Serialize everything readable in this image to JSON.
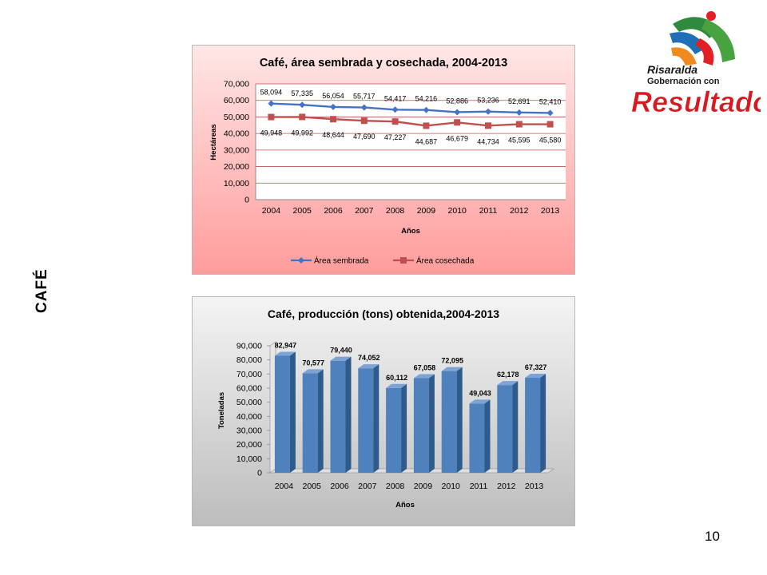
{
  "slide": {
    "side_label": "CAFÉ",
    "page_number": "10"
  },
  "logo": {
    "line1": "Risaralda",
    "line2": "Gobernación con",
    "line3": "Resultados"
  },
  "colors": {
    "sembrada": "#4472C4",
    "cosechada": "#C0504D",
    "bar": "#4F81BD"
  },
  "chart_data": [
    {
      "type": "line",
      "title": "Café, área sembrada y cosechada, 2004-2013",
      "xlabel": "Años",
      "ylabel": "Hectáreas",
      "categories": [
        "2004",
        "2005",
        "2006",
        "2007",
        "2008",
        "2009",
        "2010",
        "2011",
        "2012",
        "2013"
      ],
      "ylim": [
        0,
        70000
      ],
      "yticks": [
        "0",
        "10,000",
        "20,000",
        "30,000",
        "40,000",
        "50,000",
        "60,000",
        "70,000"
      ],
      "series": [
        {
          "name": "Área sembrada",
          "values": [
            58094,
            57335,
            56054,
            55717,
            54417,
            54216,
            52886,
            53236,
            52691,
            52410
          ],
          "labels": [
            "58,094",
            "57,335",
            "56,054",
            "55,717",
            "54,417",
            "54,216",
            "52,886",
            "53,236",
            "52,691",
            "52,410"
          ]
        },
        {
          "name": "Área cosechada",
          "values": [
            49948,
            49992,
            48644,
            47690,
            47227,
            44687,
            46679,
            44734,
            45595,
            45580
          ],
          "labels": [
            "49,948",
            "49,992",
            "48,644",
            "47,690",
            "47,227",
            "44,687",
            "46,679",
            "44,734",
            "45,595",
            "45,580"
          ]
        }
      ],
      "legend": "bottom",
      "grid": true
    },
    {
      "type": "bar",
      "title": "Café, producción (tons) obtenida,2004-2013",
      "xlabel": "Años",
      "ylabel": "Toneladas",
      "categories": [
        "2004",
        "2005",
        "2006",
        "2007",
        "2008",
        "2009",
        "2010",
        "2011",
        "2012",
        "2013"
      ],
      "ylim": [
        0,
        90000
      ],
      "yticks": [
        "0",
        "10,000",
        "20,000",
        "30,000",
        "40,000",
        "50,000",
        "60,000",
        "70,000",
        "80,000",
        "90,000"
      ],
      "values": [
        82947,
        70577,
        79440,
        74052,
        60112,
        67058,
        72095,
        49043,
        62178,
        67327
      ],
      "labels": [
        "82,947",
        "70,577",
        "79,440",
        "74,052",
        "60,112",
        "67,058",
        "72,095",
        "49,043",
        "62,178",
        "67,327"
      ],
      "grid": false
    }
  ]
}
